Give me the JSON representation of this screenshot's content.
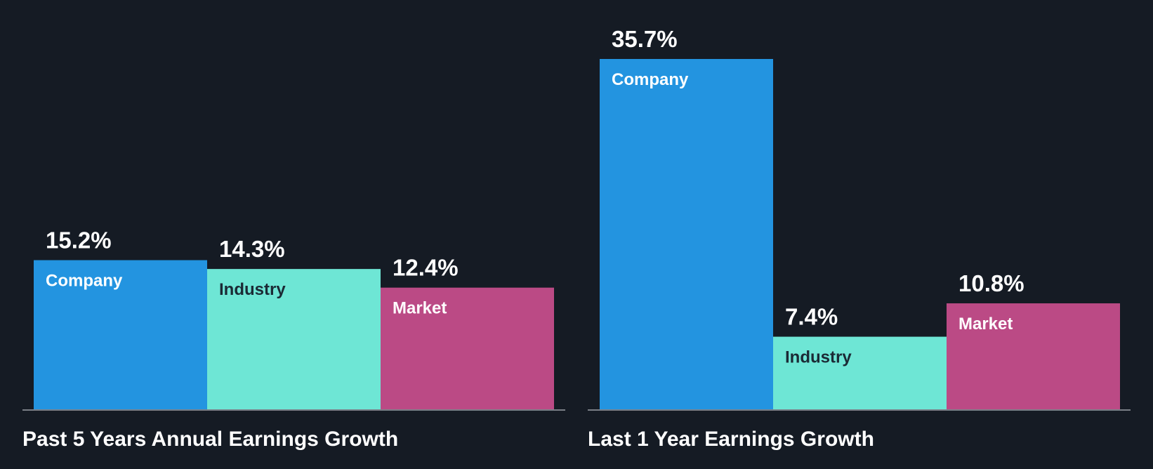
{
  "chart_data": [
    {
      "type": "bar",
      "title": "Past 5 Years Annual Earnings Growth",
      "categories": [
        "Company",
        "Industry",
        "Market"
      ],
      "values": [
        15.2,
        14.3,
        12.4
      ],
      "value_labels": [
        "15.2%",
        "14.3%",
        "12.4%"
      ],
      "unit": "%",
      "ylim": [
        0,
        35.7
      ],
      "xlabel": "",
      "ylabel": ""
    },
    {
      "type": "bar",
      "title": "Last 1 Year Earnings Growth",
      "categories": [
        "Company",
        "Industry",
        "Market"
      ],
      "values": [
        35.7,
        7.4,
        10.8
      ],
      "value_labels": [
        "35.7%",
        "7.4%",
        "10.8%"
      ],
      "unit": "%",
      "ylim": [
        0,
        35.7
      ],
      "xlabel": "",
      "ylabel": ""
    }
  ],
  "colors": {
    "background": "#151b24",
    "company": "#2394e0",
    "industry": "#6ee6d5",
    "market": "#bb4a85",
    "baseline": "#7a7f87",
    "dark_label": "#1b2a35",
    "light_label": "#ffffff"
  }
}
